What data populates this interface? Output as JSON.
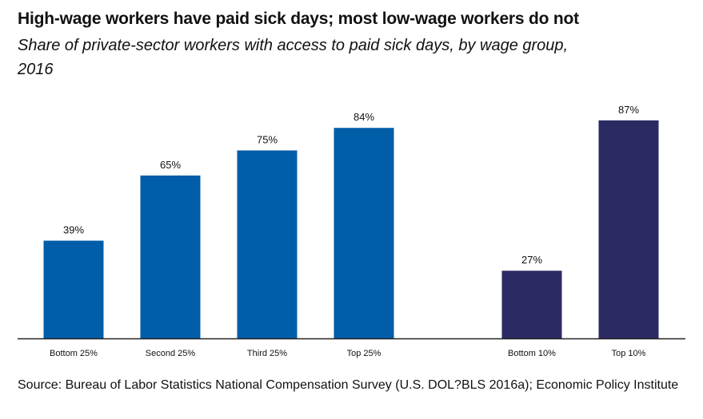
{
  "header": {
    "title": "High-wage workers have paid sick days; most low-wage workers do not",
    "subtitle": "Share of private-sector workers with access to paid sick days, by wage group, 2016"
  },
  "chart_data": {
    "type": "bar",
    "categories": [
      "Bottom 25%",
      "Second 25%",
      "Third 25%",
      "Top 25%",
      "Bottom 10%",
      "Top 10%"
    ],
    "values": [
      39,
      65,
      75,
      84,
      27,
      87
    ],
    "value_labels": [
      "39%",
      "65%",
      "75%",
      "84%",
      "27%",
      "87%"
    ],
    "colors": [
      "#005da8",
      "#005da8",
      "#005da8",
      "#005da8",
      "#2b2a63",
      "#2b2a63"
    ],
    "ylim": [
      0,
      100
    ],
    "grid": false,
    "legend": "none"
  },
  "footer": {
    "source": "Source: Bureau of Labor Statistics National Compensation Survey (U.S. DOL?BLS 2016a); Economic Policy Institute"
  }
}
